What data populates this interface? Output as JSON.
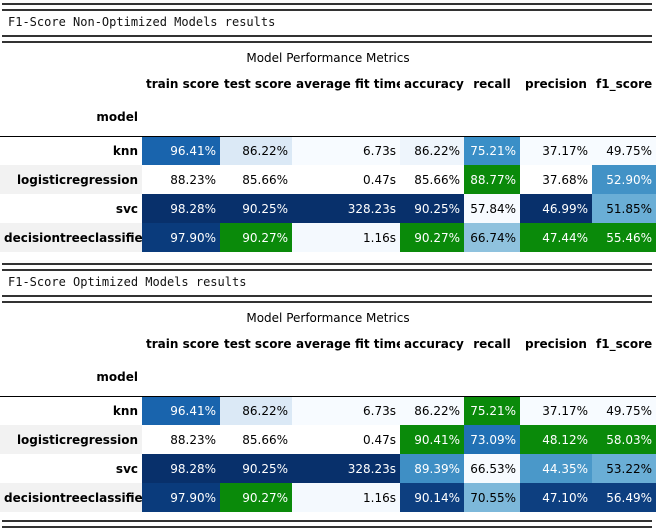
{
  "sections": [
    {
      "heading": "F1-Score Non-Optimized Models results",
      "caption": "Model Performance Metrics",
      "columns": [
        "train score",
        "test score",
        "average fit time",
        "accuracy",
        "recall",
        "precision",
        "f1_score"
      ],
      "index_name": "model",
      "rows": [
        {
          "model": "knn",
          "cells": [
            {
              "v": "96.41%",
              "bg": "#1964ad",
              "fg": "#ffffff"
            },
            {
              "v": "86.22%",
              "bg": "#dbe9f6",
              "fg": "#000000"
            },
            {
              "v": "6.73s",
              "bg": "#f7fbff",
              "fg": "#000000"
            },
            {
              "v": "86.22%",
              "bg": "#eef5fc",
              "fg": "#000000"
            },
            {
              "v": "75.21%",
              "bg": "#3a8fc7",
              "fg": "#ffffff"
            },
            {
              "v": "37.17%",
              "bg": "#f7fbff",
              "fg": "#000000"
            },
            {
              "v": "49.75%",
              "bg": "#f7fbff",
              "fg": "#000000"
            }
          ]
        },
        {
          "model": "logisticregression",
          "cells": [
            {
              "v": "88.23%",
              "bg": "#ffffff",
              "fg": "#000000"
            },
            {
              "v": "85.66%",
              "bg": "#ffffff",
              "fg": "#000000"
            },
            {
              "v": "0.47s",
              "bg": "#ffffff",
              "fg": "#000000"
            },
            {
              "v": "85.66%",
              "bg": "#ffffff",
              "fg": "#000000"
            },
            {
              "v": "88.77%",
              "bg": "#0a8a0a",
              "fg": "#ffffff"
            },
            {
              "v": "37.68%",
              "bg": "#ffffff",
              "fg": "#000000"
            },
            {
              "v": "52.90%",
              "bg": "#4292c6",
              "fg": "#ffffff"
            }
          ]
        },
        {
          "model": "svc",
          "cells": [
            {
              "v": "98.28%",
              "bg": "#08306b",
              "fg": "#ffffff"
            },
            {
              "v": "90.25%",
              "bg": "#08306b",
              "fg": "#ffffff"
            },
            {
              "v": "328.23s",
              "bg": "#08306b",
              "fg": "#ffffff"
            },
            {
              "v": "90.25%",
              "bg": "#08306b",
              "fg": "#ffffff"
            },
            {
              "v": "57.84%",
              "bg": "#f7fbff",
              "fg": "#000000"
            },
            {
              "v": "46.99%",
              "bg": "#08306b",
              "fg": "#ffffff"
            },
            {
              "v": "51.85%",
              "bg": "#6aaed6",
              "fg": "#000000"
            }
          ]
        },
        {
          "model": "decisiontreeclassifier",
          "cells": [
            {
              "v": "97.90%",
              "bg": "#0a3b7c",
              "fg": "#ffffff"
            },
            {
              "v": "90.27%",
              "bg": "#0a8a0a",
              "fg": "#ffffff"
            },
            {
              "v": "1.16s",
              "bg": "#f4f9fe",
              "fg": "#000000"
            },
            {
              "v": "90.27%",
              "bg": "#0a8a0a",
              "fg": "#ffffff"
            },
            {
              "v": "66.74%",
              "bg": "#8fc2de",
              "fg": "#000000"
            },
            {
              "v": "47.44%",
              "bg": "#0a8a0a",
              "fg": "#ffffff"
            },
            {
              "v": "55.46%",
              "bg": "#0a8a0a",
              "fg": "#ffffff"
            }
          ]
        }
      ]
    },
    {
      "heading": "F1-Score Optimized Models results",
      "caption": "Model Performance Metrics",
      "columns": [
        "train score",
        "test score",
        "average fit time",
        "accuracy",
        "recall",
        "precision",
        "f1_score"
      ],
      "index_name": "model",
      "rows": [
        {
          "model": "knn",
          "cells": [
            {
              "v": "96.41%",
              "bg": "#1964ad",
              "fg": "#ffffff"
            },
            {
              "v": "86.22%",
              "bg": "#dbe9f6",
              "fg": "#000000"
            },
            {
              "v": "6.73s",
              "bg": "#f7fbff",
              "fg": "#000000"
            },
            {
              "v": "86.22%",
              "bg": "#f7fbff",
              "fg": "#000000"
            },
            {
              "v": "75.21%",
              "bg": "#0a8a0a",
              "fg": "#ffffff"
            },
            {
              "v": "37.17%",
              "bg": "#f7fbff",
              "fg": "#000000"
            },
            {
              "v": "49.75%",
              "bg": "#f7fbff",
              "fg": "#000000"
            }
          ]
        },
        {
          "model": "logisticregression",
          "cells": [
            {
              "v": "88.23%",
              "bg": "#ffffff",
              "fg": "#000000"
            },
            {
              "v": "85.66%",
              "bg": "#ffffff",
              "fg": "#000000"
            },
            {
              "v": "0.47s",
              "bg": "#ffffff",
              "fg": "#000000"
            },
            {
              "v": "90.41%",
              "bg": "#0a8a0a",
              "fg": "#ffffff"
            },
            {
              "v": "73.09%",
              "bg": "#2171b5",
              "fg": "#ffffff"
            },
            {
              "v": "48.12%",
              "bg": "#0a8a0a",
              "fg": "#ffffff"
            },
            {
              "v": "58.03%",
              "bg": "#0a8a0a",
              "fg": "#ffffff"
            }
          ]
        },
        {
          "model": "svc",
          "cells": [
            {
              "v": "98.28%",
              "bg": "#08306b",
              "fg": "#ffffff"
            },
            {
              "v": "90.25%",
              "bg": "#08306b",
              "fg": "#ffffff"
            },
            {
              "v": "328.23s",
              "bg": "#08306b",
              "fg": "#ffffff"
            },
            {
              "v": "89.39%",
              "bg": "#3f8fc5",
              "fg": "#ffffff"
            },
            {
              "v": "66.53%",
              "bg": "#f7fbff",
              "fg": "#000000"
            },
            {
              "v": "44.35%",
              "bg": "#4a98c9",
              "fg": "#ffffff"
            },
            {
              "v": "53.22%",
              "bg": "#6aaed6",
              "fg": "#000000"
            }
          ]
        },
        {
          "model": "decisiontreeclassifier",
          "cells": [
            {
              "v": "97.90%",
              "bg": "#0a3b7c",
              "fg": "#ffffff"
            },
            {
              "v": "90.27%",
              "bg": "#0a8a0a",
              "fg": "#ffffff"
            },
            {
              "v": "1.16s",
              "bg": "#f4f9fe",
              "fg": "#000000"
            },
            {
              "v": "90.14%",
              "bg": "#0d3f80",
              "fg": "#ffffff"
            },
            {
              "v": "70.55%",
              "bg": "#7db8da",
              "fg": "#000000"
            },
            {
              "v": "47.10%",
              "bg": "#0d3f80",
              "fg": "#ffffff"
            },
            {
              "v": "56.49%",
              "bg": "#0d3f80",
              "fg": "#ffffff"
            }
          ]
        }
      ]
    }
  ]
}
